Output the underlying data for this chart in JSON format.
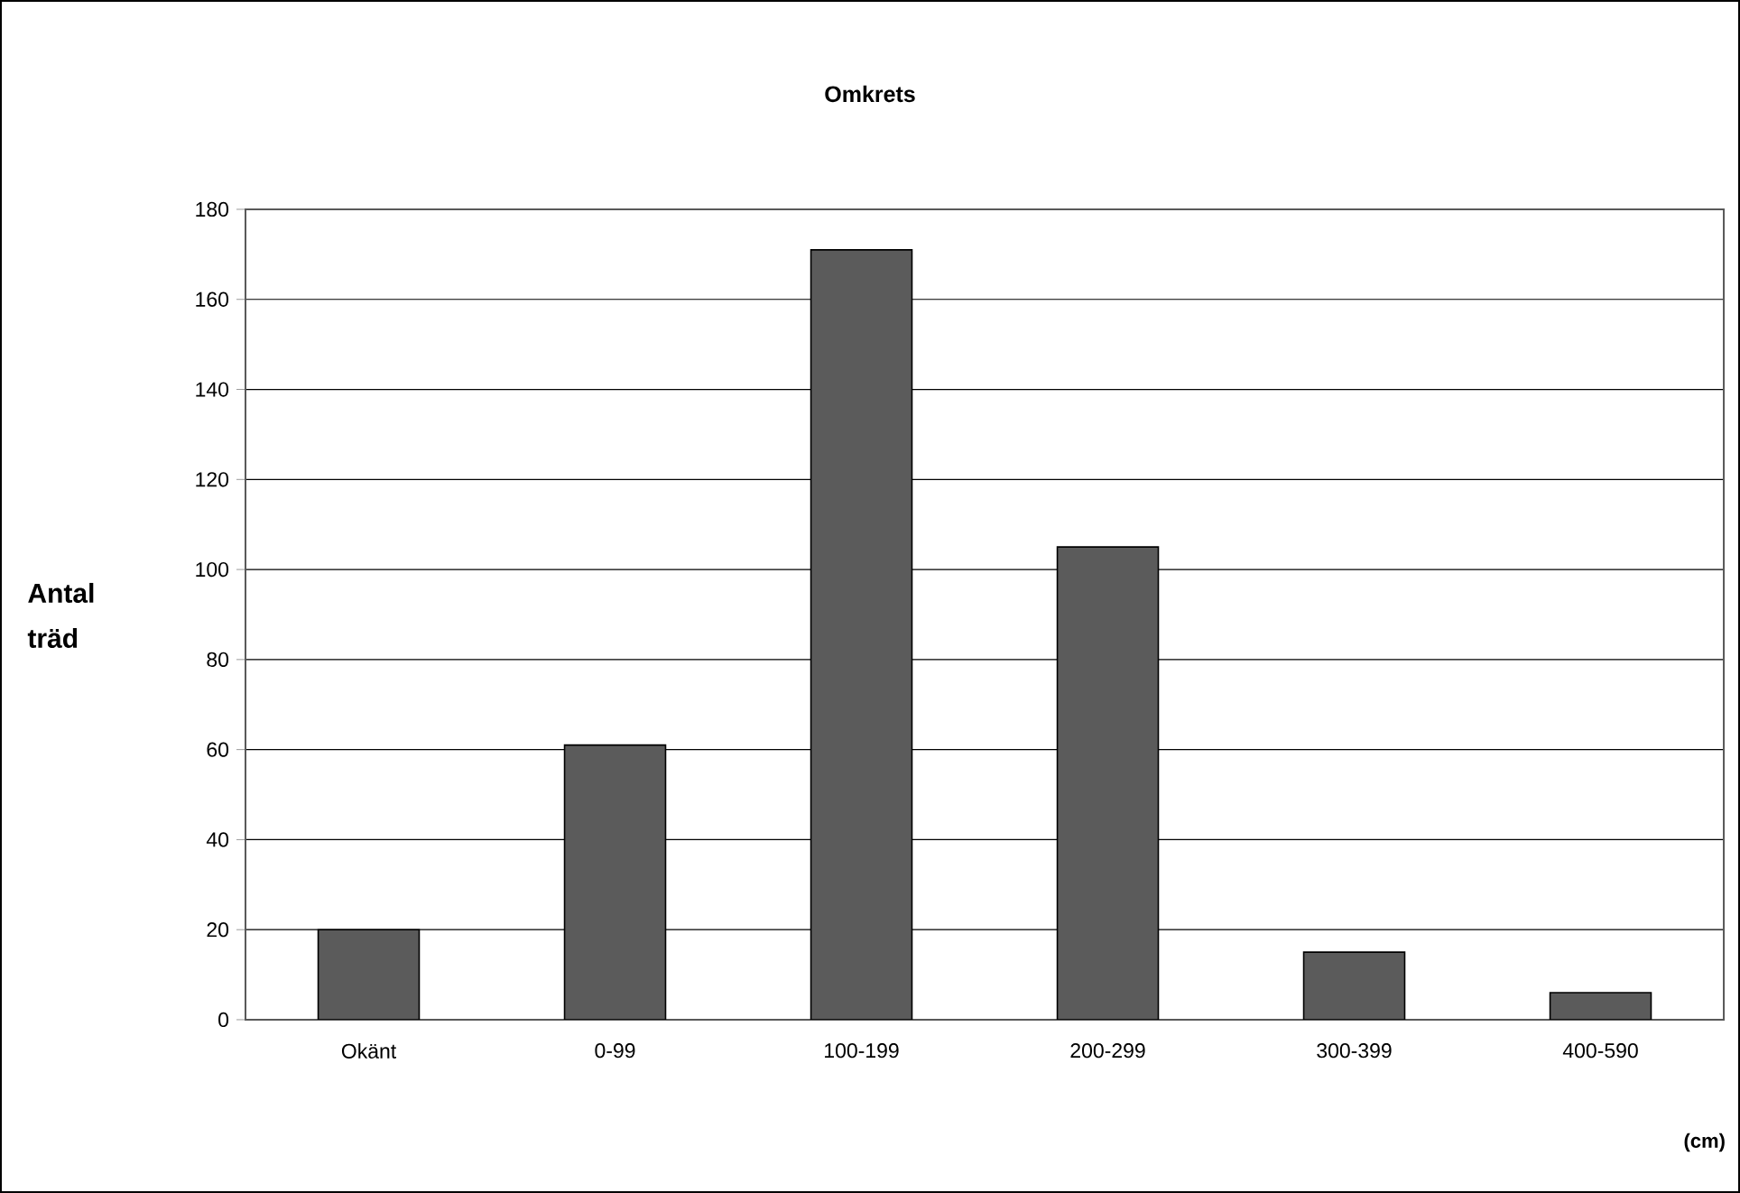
{
  "chart_data": {
    "type": "bar",
    "title": "Omkrets",
    "xlabel": "(cm)",
    "ylabel": "Antal träd",
    "categories": [
      "Okänt",
      "0-99",
      "100-199",
      "200-299",
      "300-399",
      "400-590"
    ],
    "values": [
      20,
      61,
      171,
      105,
      15,
      6
    ],
    "color": "#5b5b5b",
    "ylim": [
      0,
      180
    ],
    "yticks": [
      0,
      20,
      40,
      60,
      80,
      100,
      120,
      140,
      160,
      180
    ],
    "grid": "y"
  }
}
